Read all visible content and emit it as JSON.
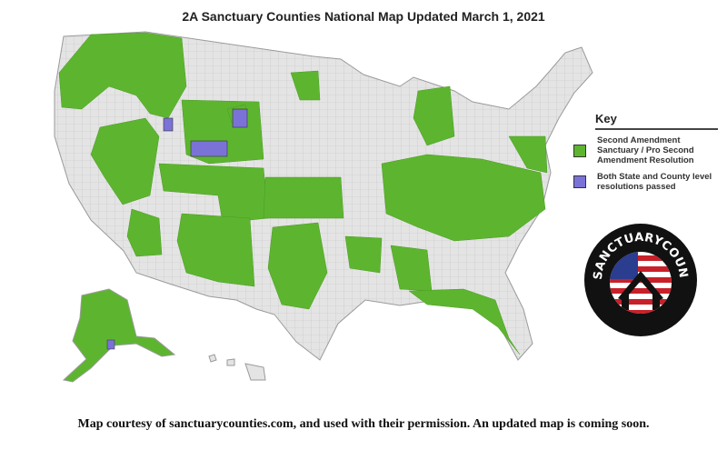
{
  "title": "2A Sanctuary Counties National Map Updated March 1, 2021",
  "colors": {
    "sanctuary": "#5db52f",
    "both": "#7b72d8",
    "county_default": "#e4e4e4",
    "border": "#b8b8b8"
  },
  "key": {
    "title": "Key",
    "items": [
      {
        "label": "Second Amendment Sanctuary / Pro Second Amendment Resolution",
        "color": "#5db52f"
      },
      {
        "label": "Both State and County level resolutions passed",
        "color": "#7b72d8"
      }
    ]
  },
  "logo": {
    "text": "SANCTUARYCOUNTIES.COM"
  },
  "caption": "Map courtesy of sanctuarycounties.com, and used with their permission. An updated map is coming soon."
}
